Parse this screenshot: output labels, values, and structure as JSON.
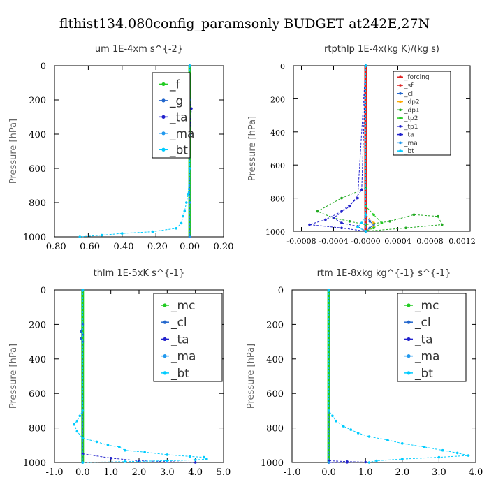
{
  "title": "flthist134.080config_paramsonly  BUDGET at242E,27N",
  "colors": {
    "f": "#22cc22",
    "g": "#2266cc",
    "ta": "#2222cc",
    "ma": "#2299ee",
    "bt": "#00ccff",
    "mc": "#22cc22",
    "cl": "#2266cc",
    "forcing": "#dd2222",
    "sf": "#dd2222",
    "dp2": "#ffaa00",
    "dp1": "#22aa22",
    "tp2": "#22cc22",
    "tp1": "#2222cc"
  },
  "chart_data": [
    {
      "type": "line",
      "title": "um  1E-4xm s^{-2}",
      "xlabel": "",
      "ylabel": "Pressure [hPa]",
      "xlim": [
        -0.8,
        0.2
      ],
      "ylim": [
        1000,
        0
      ],
      "grid": false,
      "legend_position": "top-right",
      "xticks": [
        "-0.80",
        "-0.60",
        "-0.40",
        "-0.20",
        "0.00",
        "0.20"
      ],
      "yticks": [
        "0",
        "200",
        "400",
        "600",
        "800",
        "1000"
      ],
      "series": [
        {
          "name": "_f",
          "color_key": "f",
          "x": [
            0.0,
            0.0,
            0.0,
            0.0,
            0.0,
            0.0
          ],
          "y": [
            0,
            200,
            400,
            600,
            800,
            1000
          ]
        },
        {
          "name": "_g",
          "color_key": "g",
          "x": [
            0.0,
            0.0,
            0.0,
            0.0,
            0.0,
            0.0
          ],
          "y": [
            0,
            200,
            400,
            600,
            800,
            1000
          ]
        },
        {
          "name": "_ta",
          "color_key": "ta",
          "x": [
            0.0,
            0.0,
            0.01,
            0.0,
            0.0,
            0.0,
            0.0
          ],
          "y": [
            0,
            200,
            250,
            400,
            600,
            800,
            1000
          ]
        },
        {
          "name": "_ma",
          "color_key": "ma",
          "x": [
            0.0,
            0.0,
            0.0,
            0.0,
            0.0,
            0.0
          ],
          "y": [
            0,
            200,
            400,
            600,
            800,
            1000
          ]
        },
        {
          "name": "_bt",
          "color_key": "bt",
          "x": [
            0.0,
            0.0,
            -0.01,
            -0.02,
            -0.03,
            -0.04,
            -0.05,
            -0.08,
            -0.22,
            -0.4,
            -0.52,
            -0.65
          ],
          "y": [
            0,
            600,
            750,
            800,
            850,
            880,
            920,
            950,
            970,
            980,
            990,
            1000
          ]
        }
      ]
    },
    {
      "type": "line",
      "title": "rtpthlp  1E-4x(kg K)/(kg s)",
      "xlabel": "",
      "ylabel": "Pressure [hPa]",
      "xlim": [
        -0.0009,
        0.0013
      ],
      "ylim": [
        1000,
        0
      ],
      "grid": false,
      "legend_position": "top-right",
      "xticks": [
        "-0.0008",
        "-0.0004",
        "-0.0000",
        "0.0004",
        "0.0008",
        "0.0012"
      ],
      "xtick_values": [
        -0.0008,
        -0.0004,
        0.0,
        0.0004,
        0.0008,
        0.0012
      ],
      "yticks": [
        "0",
        "200",
        "400",
        "600",
        "800",
        "1000"
      ],
      "series": [
        {
          "name": "_forcing",
          "color_key": "forcing",
          "x": [
            0.0,
            0.0
          ],
          "y": [
            0,
            1000
          ]
        },
        {
          "name": "_sf",
          "color_key": "sf",
          "x": [
            0.0,
            0.0
          ],
          "y": [
            0,
            1000
          ]
        },
        {
          "name": "_cl",
          "color_key": "cl",
          "x": [
            0.0,
            0.0,
            5e-05,
            0.0001,
            5e-05,
            0.0
          ],
          "y": [
            0,
            900,
            940,
            960,
            980,
            1000
          ]
        },
        {
          "name": "_dp2",
          "color_key": "dp2",
          "x": [
            0.0,
            0.0,
            0.0001,
            0.0001,
            0.0
          ],
          "y": [
            0,
            900,
            950,
            975,
            1000
          ]
        },
        {
          "name": "_dp1",
          "color_key": "dp1",
          "x": [
            0.0,
            0.0,
            -0.0003,
            -0.0006,
            -0.0004,
            -0.0002,
            0.0,
            0.0003,
            0.0006,
            0.0009,
            0.00095,
            0.0005,
            0.0
          ],
          "y": [
            0,
            740,
            800,
            880,
            920,
            940,
            960,
            940,
            900,
            910,
            960,
            980,
            1000
          ]
        },
        {
          "name": "_tp2",
          "color_key": "tp2",
          "x": [
            0.0,
            0.0,
            0.0001,
            0.0002,
            0.0001,
            0.0
          ],
          "y": [
            0,
            850,
            900,
            950,
            980,
            1000
          ]
        },
        {
          "name": "_tp1",
          "color_key": "tp1",
          "x": [
            0.0,
            -5e-05,
            -0.0002,
            -0.0004,
            -0.0003,
            -0.0001,
            0.0
          ],
          "y": [
            0,
            750,
            850,
            920,
            950,
            970,
            1000
          ]
        },
        {
          "name": "_ta",
          "color_key": "ta",
          "x": [
            0.0,
            -0.0001,
            -0.0003,
            -0.0005,
            -0.0007,
            -0.0003,
            0.0
          ],
          "y": [
            0,
            800,
            880,
            930,
            960,
            980,
            1000
          ]
        },
        {
          "name": "_ma",
          "color_key": "ma",
          "x": [
            0.0,
            0.0
          ],
          "y": [
            0,
            1000
          ]
        },
        {
          "name": "_bt",
          "color_key": "bt",
          "x": [
            0.0,
            0.0,
            -5e-05,
            -0.0001,
            0.0
          ],
          "y": [
            0,
            900,
            950,
            975,
            1000
          ]
        }
      ]
    },
    {
      "type": "line",
      "title": "thlm  1E-5xK s^{-1}",
      "xlabel": "",
      "ylabel": "Pressure [hPa]",
      "xlim": [
        -1.0,
        5.0
      ],
      "ylim": [
        1000,
        0
      ],
      "grid": false,
      "legend_position": "top-right",
      "xticks": [
        "-1.0",
        "0.0",
        "1.0",
        "2.0",
        "3.0",
        "4.0",
        "5.0"
      ],
      "yticks": [
        "0",
        "200",
        "400",
        "600",
        "800",
        "1000"
      ],
      "series": [
        {
          "name": "_mc",
          "color_key": "mc",
          "x": [
            0.0,
            0.0
          ],
          "y": [
            0,
            1000
          ]
        },
        {
          "name": "_cl",
          "color_key": "cl",
          "x": [
            0.0,
            0.0,
            -0.05,
            0.0,
            -0.05,
            0.0,
            0.0
          ],
          "y": [
            0,
            200,
            240,
            260,
            280,
            300,
            1000
          ]
        },
        {
          "name": "_ta",
          "color_key": "ta",
          "x": [
            0.0,
            0.0,
            1.0,
            2.0,
            3.0,
            4.0
          ],
          "y": [
            0,
            950,
            975,
            990,
            995,
            1000
          ]
        },
        {
          "name": "_ma",
          "color_key": "ma",
          "x": [
            0.0,
            0.0
          ],
          "y": [
            0,
            1000
          ]
        },
        {
          "name": "_bt",
          "color_key": "bt",
          "x": [
            0.0,
            0.0,
            -0.1,
            -0.2,
            -0.3,
            -0.2,
            0.0,
            0.5,
            0.9,
            1.3,
            1.5,
            2.2,
            3.0,
            3.8,
            4.3,
            4.4,
            4.0,
            3.0,
            1.5,
            0.0
          ],
          "y": [
            0,
            700,
            730,
            760,
            780,
            820,
            860,
            880,
            900,
            910,
            930,
            940,
            955,
            965,
            970,
            980,
            985,
            990,
            995,
            1000
          ]
        }
      ]
    },
    {
      "type": "line",
      "title": "rtm  1E-8xkg kg^{-1} s^{-1}",
      "xlabel": "",
      "ylabel": "Pressure [hPa]",
      "xlim": [
        -1.0,
        4.0
      ],
      "ylim": [
        1000,
        0
      ],
      "grid": false,
      "legend_position": "top-right",
      "xticks": [
        "-1.0",
        "0.0",
        "1.0",
        "2.0",
        "3.0",
        "4.0"
      ],
      "yticks": [
        "0",
        "200",
        "400",
        "600",
        "800",
        "1000"
      ],
      "series": [
        {
          "name": "_mc",
          "color_key": "mc",
          "x": [
            0.0,
            0.0
          ],
          "y": [
            0,
            1000
          ]
        },
        {
          "name": "_cl",
          "color_key": "cl",
          "x": [
            0.0,
            0.0
          ],
          "y": [
            0,
            1000
          ]
        },
        {
          "name": "_ta",
          "color_key": "ta",
          "x": [
            0.0,
            0.0,
            0.5,
            1.0,
            0.5,
            0.0
          ],
          "y": [
            0,
            990,
            995,
            998,
            999,
            1000
          ]
        },
        {
          "name": "_ma",
          "color_key": "ma",
          "x": [
            0.0,
            0.0
          ],
          "y": [
            0,
            1000
          ]
        },
        {
          "name": "_bt",
          "color_key": "bt",
          "x": [
            0.0,
            0.0,
            0.1,
            0.2,
            0.4,
            0.6,
            0.8,
            1.1,
            1.6,
            2.0,
            2.6,
            3.1,
            3.5,
            3.8,
            3.0,
            2.0,
            1.3,
            1.1
          ],
          "y": [
            0,
            700,
            730,
            760,
            790,
            810,
            830,
            850,
            870,
            890,
            910,
            930,
            945,
            960,
            970,
            980,
            990,
            1000
          ]
        }
      ]
    }
  ]
}
